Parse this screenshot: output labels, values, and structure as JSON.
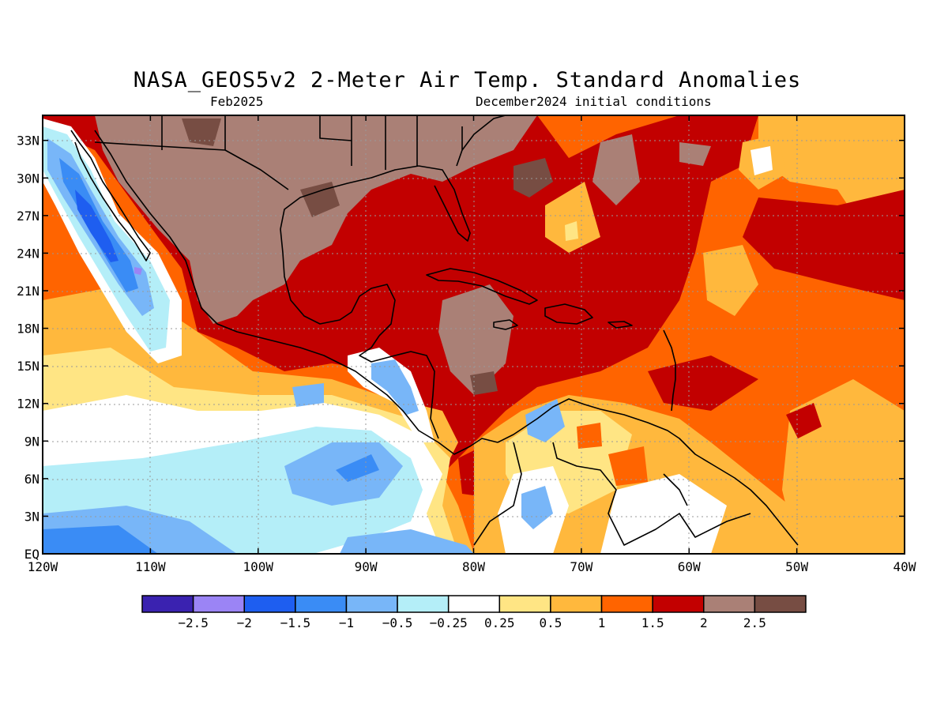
{
  "chart": {
    "title": "NASA_GEOS5v2 2-Meter Air Temp. Standard Anomalies",
    "subtitle_left": "Feb2025",
    "subtitle_right": "December2024 initial conditions"
  },
  "map": {
    "lon_range": [
      -120,
      -40
    ],
    "lat_range": [
      0,
      35
    ],
    "x_ticks": [
      "120W",
      "110W",
      "100W",
      "90W",
      "80W",
      "70W",
      "60W",
      "50W",
      "40W"
    ],
    "y_ticks": [
      "EQ",
      "3N",
      "6N",
      "9N",
      "12N",
      "15N",
      "18N",
      "21N",
      "24N",
      "27N",
      "30N",
      "33N"
    ],
    "grid": "dotted",
    "land_outlines": "black coastlines and country borders"
  },
  "colorbar": {
    "colors": [
      "#3a22b0",
      "#9b84f5",
      "#1e5ef0",
      "#3a8cf5",
      "#78b6f8",
      "#b4eef8",
      "#ffffff",
      "#ffe584",
      "#ffb83d",
      "#ff6400",
      "#c20000",
      "#aa8076",
      "#774d43"
    ],
    "labels": [
      "-2.5",
      "-2",
      "-1.5",
      "-1",
      "-0.5",
      "-0.25",
      "0.25",
      "0.5",
      "1",
      "1.5",
      "2",
      "2.5"
    ]
  }
}
